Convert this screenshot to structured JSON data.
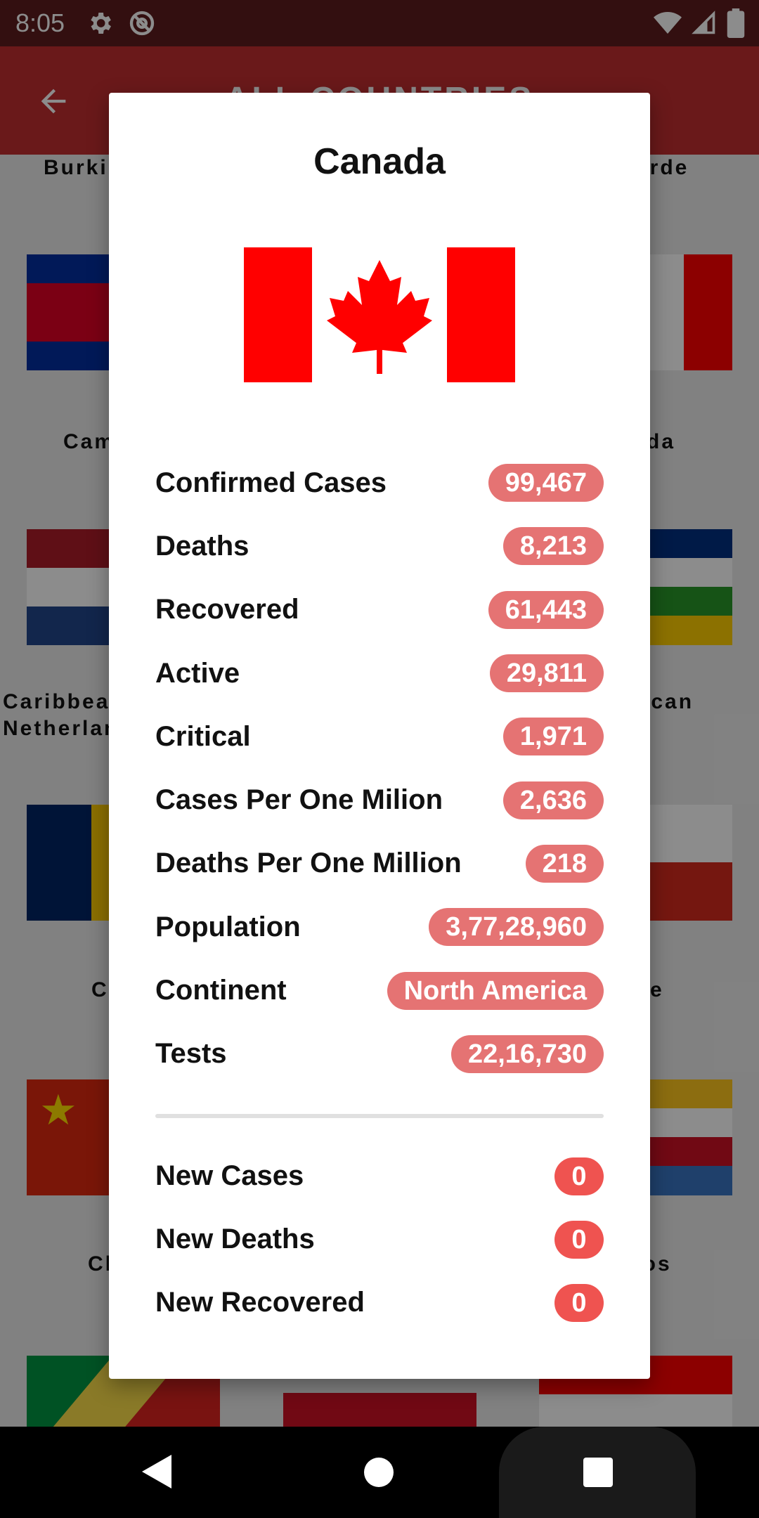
{
  "status_bar": {
    "time": "8:05",
    "icons": [
      "gear-icon",
      "at-sign-icon",
      "wifi-icon",
      "signal-icon",
      "battery-icon"
    ]
  },
  "app_bar": {
    "title": "ALL COUNTRIES",
    "back_icon": "arrow-back-icon",
    "color": "#c12e31"
  },
  "background_countries": {
    "row1": [
      "Burki",
      "erde"
    ],
    "row2": [
      "Cam",
      "da"
    ],
    "row3_left": "Caribbea\nNetherlan",
    "row3_right": "ican",
    "row4": [
      "C",
      "e"
    ],
    "row5": [
      "Cl",
      "ros"
    ]
  },
  "dialog": {
    "title": "Canada",
    "stats": [
      {
        "label": "Confirmed Cases",
        "value": "99,467"
      },
      {
        "label": "Deaths",
        "value": "8,213"
      },
      {
        "label": "Recovered",
        "value": "61,443"
      },
      {
        "label": "Active",
        "value": "29,811"
      },
      {
        "label": "Critical",
        "value": "1,971"
      },
      {
        "label": "Cases Per One Milion",
        "value": "2,636"
      },
      {
        "label": "Deaths Per One Million",
        "value": "218"
      },
      {
        "label": "Population",
        "value": "3,77,28,960"
      },
      {
        "label": "Continent",
        "value": "North America"
      },
      {
        "label": "Tests",
        "value": "22,16,730"
      }
    ],
    "new_stats": [
      {
        "label": "New Cases",
        "value": "0"
      },
      {
        "label": "New Deaths",
        "value": "0"
      },
      {
        "label": "New Recovered",
        "value": "0"
      }
    ],
    "pill_color": "#e57373",
    "new_pill_color": "#ef5350"
  },
  "nav_bar": {
    "icons": [
      "back-triangle-icon",
      "home-circle-icon",
      "recents-square-icon"
    ]
  }
}
